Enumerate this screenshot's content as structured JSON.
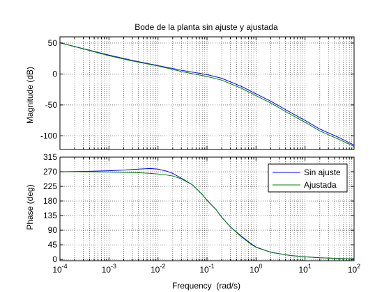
{
  "figure": {
    "background": "#ffffff"
  },
  "chart_data": [
    {
      "type": "line",
      "title": "Bode de la planta sin ajuste y ajustada",
      "xlabel": "",
      "ylabel": "Magnitude (dB)",
      "xscale": "log",
      "xlim": [
        0.0001,
        100
      ],
      "ylim": [
        -122,
        60
      ],
      "yticks": [
        50,
        0,
        -50,
        -100
      ],
      "ytick_labels": [
        "50",
        "0",
        "-50",
        "-100"
      ],
      "grid": true,
      "legend": "none",
      "series": [
        {
          "color": "#0000ff",
          "x": [
            0.0001,
            0.001,
            0.003,
            0.01,
            0.03,
            0.1,
            0.2,
            0.5,
            1,
            2,
            5,
            10,
            20,
            50,
            100
          ],
          "values": [
            50.5,
            30.5,
            22,
            13.5,
            6,
            -1,
            -7,
            -20,
            -32,
            -44,
            -62,
            -75,
            -89,
            -103,
            -115
          ]
        },
        {
          "color": "#008000",
          "x": [
            0.0001,
            0.001,
            0.003,
            0.01,
            0.03,
            0.1,
            0.2,
            0.5,
            1,
            2,
            5,
            10,
            20,
            50,
            100
          ],
          "values": [
            50.5,
            29.5,
            21,
            13,
            4,
            -4,
            -10,
            -23,
            -35,
            -47,
            -65,
            -78,
            -92,
            -106,
            -117
          ]
        }
      ]
    },
    {
      "type": "line",
      "title": "",
      "xlabel": "Frequency  (rad/s)",
      "ylabel": "Phase (deg)",
      "xscale": "log",
      "xlim": [
        0.0001,
        100
      ],
      "ylim": [
        -4,
        315
      ],
      "yticks": [
        0,
        45,
        90,
        135,
        180,
        225,
        270,
        315
      ],
      "ytick_labels": [
        "0",
        "45",
        "90",
        "135",
        "180",
        "225",
        "270",
        "315"
      ],
      "xtick_exponents": [
        "-4",
        "-3",
        "-2",
        "-1",
        "0",
        "1",
        "2"
      ],
      "xtick_base": "10",
      "grid": true,
      "legend": "top-right",
      "series": [
        {
          "name": "Sin ajuste",
          "color": "#0000ff",
          "x": [
            0.0001,
            0.0003,
            0.001,
            0.002,
            0.004,
            0.007,
            0.01,
            0.015,
            0.02,
            0.03,
            0.05,
            0.08,
            0.1,
            0.15,
            0.2,
            0.3,
            0.5,
            0.8,
            1,
            2,
            5,
            10,
            20,
            50,
            100
          ],
          "values": [
            270,
            271,
            273,
            275,
            278,
            280,
            278,
            272,
            265,
            250,
            230,
            200,
            182,
            155,
            130,
            100,
            72,
            48,
            38,
            22,
            12,
            8,
            5,
            3,
            2
          ]
        },
        {
          "name": "Ajustada",
          "color": "#008000",
          "x": [
            0.0001,
            0.0003,
            0.001,
            0.002,
            0.004,
            0.007,
            0.01,
            0.015,
            0.02,
            0.03,
            0.05,
            0.08,
            0.1,
            0.15,
            0.2,
            0.3,
            0.5,
            0.8,
            1,
            2,
            5,
            10,
            20,
            50,
            100
          ],
          "values": [
            270,
            270,
            269,
            268,
            267,
            265,
            263,
            260,
            257,
            248,
            230,
            200,
            182,
            155,
            130,
            100,
            70,
            46,
            37,
            22,
            12,
            8,
            5,
            3,
            2
          ]
        }
      ]
    }
  ]
}
